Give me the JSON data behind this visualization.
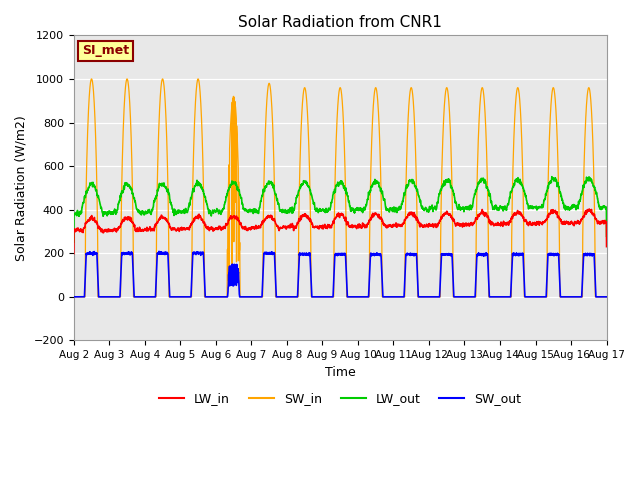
{
  "title": "Solar Radiation from CNR1",
  "xlabel": "Time",
  "ylabel": "Solar Radiation (W/m2)",
  "ylim": [
    -200,
    1200
  ],
  "yticks": [
    -200,
    0,
    200,
    400,
    600,
    800,
    1000,
    1200
  ],
  "xlim": [
    0,
    15
  ],
  "xtick_labels": [
    "Aug 2",
    "Aug 3",
    "Aug 4",
    "Aug 5",
    "Aug 6",
    "Aug 7",
    "Aug 8",
    "Aug 9",
    "Aug 10",
    "Aug 11",
    "Aug 12",
    "Aug 13",
    "Aug 14",
    "Aug 15",
    "Aug 16",
    "Aug 17"
  ],
  "xtick_positions": [
    0,
    1,
    2,
    3,
    4,
    5,
    6,
    7,
    8,
    9,
    10,
    11,
    12,
    13,
    14,
    15
  ],
  "colors": {
    "LW_in": "#FF0000",
    "SW_in": "#FFA500",
    "LW_out": "#00CC00",
    "SW_out": "#0000FF"
  },
  "background_color": "#E8E8E8",
  "plot_bg_color": "#E8E8E8",
  "label_box_color": "#FFFF99",
  "label_box_text": "SI_met",
  "label_box_edge": "#8B0000",
  "n_days": 15
}
